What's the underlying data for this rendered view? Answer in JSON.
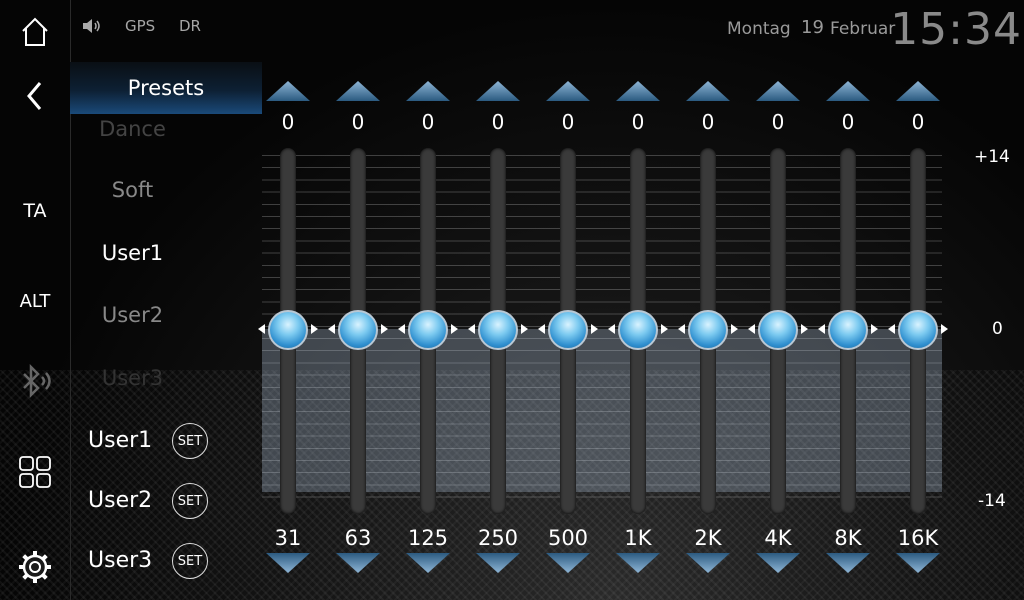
{
  "status": {
    "volume_icon": "speaker-icon",
    "gps": "GPS",
    "dr": "DR",
    "day": "Montag",
    "date_num": "19",
    "month": "Februar",
    "time": "15:34"
  },
  "sidebar": {
    "home": "home-icon",
    "back": "back-icon",
    "ta": "TA",
    "alt": "ALT",
    "bluetooth": "bluetooth-audio-icon",
    "apps": "apps-grid-icon",
    "settings": "gear-icon"
  },
  "presets": {
    "header": "Presets",
    "list": [
      "Dance",
      "Soft",
      "User1",
      "User2",
      "User3"
    ],
    "selected": "User1"
  },
  "user_slots": [
    {
      "label": "User1",
      "set": "SET"
    },
    {
      "label": "User2",
      "set": "SET"
    },
    {
      "label": "User3",
      "set": "SET"
    }
  ],
  "eq": {
    "bands": [
      {
        "freq": "31",
        "value": "0"
      },
      {
        "freq": "63",
        "value": "0"
      },
      {
        "freq": "125",
        "value": "0"
      },
      {
        "freq": "250",
        "value": "0"
      },
      {
        "freq": "500",
        "value": "0"
      },
      {
        "freq": "1K",
        "value": "0"
      },
      {
        "freq": "2K",
        "value": "0"
      },
      {
        "freq": "4K",
        "value": "0"
      },
      {
        "freq": "8K",
        "value": "0"
      },
      {
        "freq": "16K",
        "value": "0"
      }
    ],
    "scale": {
      "max": "+14",
      "mid": "0",
      "min": "-14"
    }
  }
}
